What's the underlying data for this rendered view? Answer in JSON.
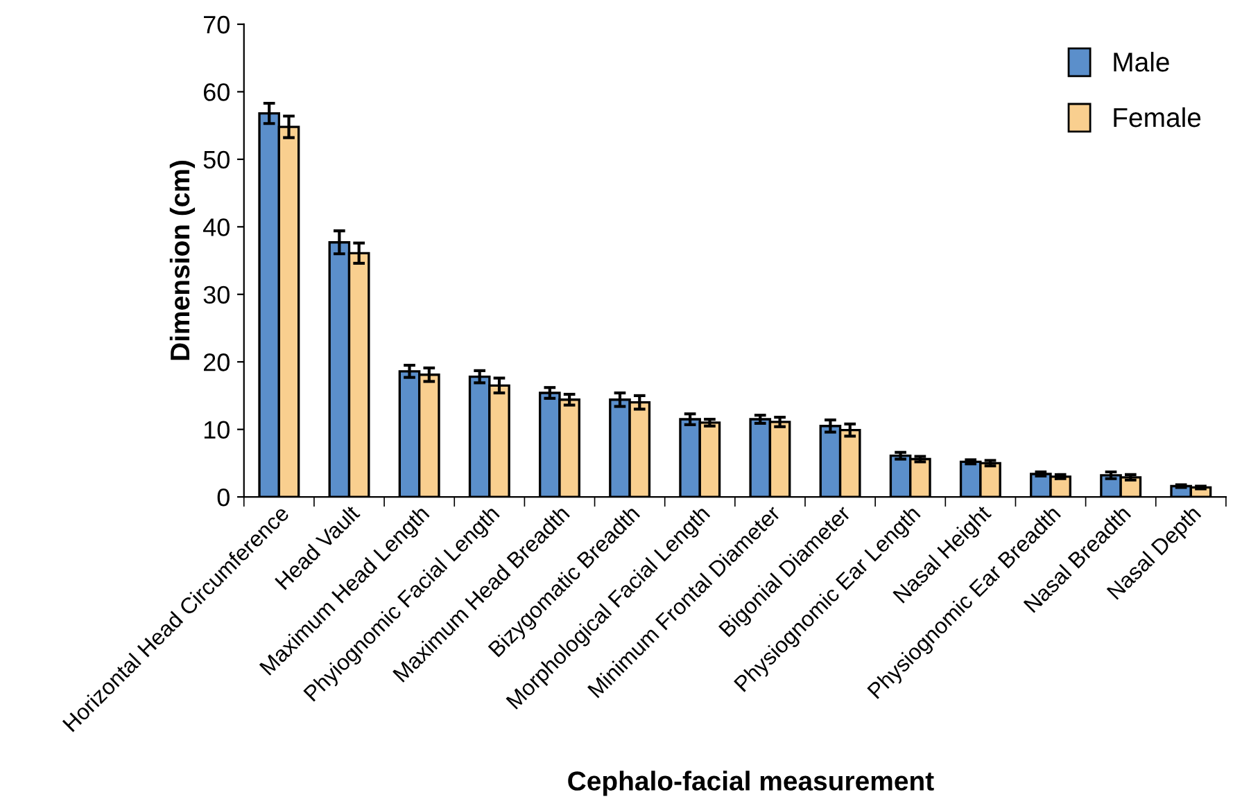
{
  "chart_data": {
    "type": "bar",
    "xlabel": "Cephalo-facial measurement",
    "ylabel": "Dimension (cm)",
    "categories": [
      "Horizontal Head Circumference",
      "Head Vault",
      "Maximum Head Length",
      "Phyiognomic Facial Length",
      "Maximum Head Breadth",
      "Bizygomatic Breadth",
      "Morphological Facial Length",
      "Minimum Frontal Diameter",
      "Bigonial Diameter",
      "Physiognomic Ear Length",
      "Nasal Height",
      "Physiognomic Ear Breadth",
      "Nasal Breadth",
      "Nasal Depth"
    ],
    "series": [
      {
        "name": "Male",
        "color": "#5b8fcb",
        "values": [
          56.8,
          37.7,
          18.6,
          17.8,
          15.4,
          14.4,
          11.5,
          11.5,
          10.5,
          6.1,
          5.2,
          3.4,
          3.2,
          1.6
        ],
        "errors": [
          1.5,
          1.7,
          0.9,
          0.9,
          0.8,
          1.0,
          0.8,
          0.6,
          0.9,
          0.5,
          0.3,
          0.3,
          0.5,
          0.2
        ]
      },
      {
        "name": "Female",
        "color": "#f9cf8f",
        "values": [
          54.8,
          36.1,
          18.1,
          16.5,
          14.4,
          14.0,
          11.0,
          11.1,
          9.9,
          5.6,
          5.0,
          3.0,
          2.9,
          1.4
        ],
        "errors": [
          1.6,
          1.5,
          1.0,
          1.1,
          0.8,
          1.0,
          0.5,
          0.7,
          0.9,
          0.4,
          0.4,
          0.3,
          0.4,
          0.2
        ]
      }
    ],
    "ylim": [
      0,
      70
    ],
    "yticks": [
      0,
      10,
      20,
      30,
      40,
      50,
      60,
      70
    ],
    "grid": false,
    "legend": "top right"
  }
}
